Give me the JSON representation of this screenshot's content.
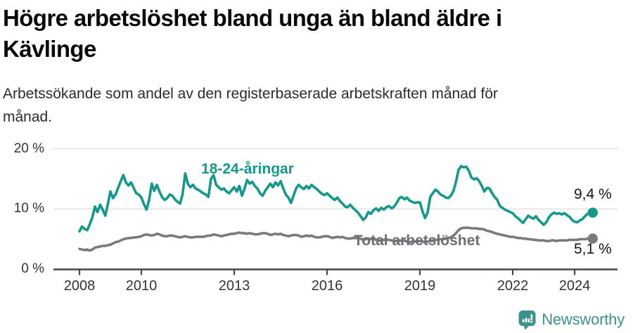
{
  "header": {
    "title_line1": "Högre arbetslöshet bland unga än bland äldre i",
    "title_line2": "Kävlinge",
    "subtitle_line1": "Arbetssökande som andel av den registerbaserade arbetskraften månad för",
    "subtitle_line2": "månad."
  },
  "chart_data": {
    "type": "line",
    "title": "Högre arbetslöshet bland unga än bland äldre i Kävlinge",
    "subtitle": "Arbetssökande som andel av den registerbaserade arbetskraften månad för månad.",
    "x_unit": "monthly",
    "x_start": "2008-01",
    "x_end": "2024-08",
    "ylim": [
      0,
      21.5
    ],
    "grid": "horizontal",
    "y_ticks": [
      0,
      10,
      20
    ],
    "y_tick_labels": [
      "0 %",
      "10 %",
      "20 %"
    ],
    "x_tick_years": [
      2008,
      2010,
      2013,
      2016,
      2019,
      2022,
      2024
    ],
    "x_tick_labels": [
      "2008",
      "2010",
      "2013",
      "2016",
      "2019",
      "2022",
      "2024"
    ],
    "series": [
      {
        "name": "Total arbetslöshet",
        "color": "#7a7a7e",
        "end_label": "5,1 %",
        "values": [
          3.4,
          3.3,
          3.2,
          3.3,
          3.1,
          3.3,
          3.6,
          3.7,
          3.8,
          3.9,
          3.9,
          4.0,
          4.1,
          4.3,
          4.5,
          4.6,
          4.8,
          5.0,
          5.1,
          5.2,
          5.2,
          5.3,
          5.3,
          5.4,
          5.5,
          5.7,
          5.8,
          5.7,
          5.6,
          5.7,
          5.9,
          5.8,
          5.6,
          5.5,
          5.5,
          5.6,
          5.6,
          5.5,
          5.4,
          5.3,
          5.4,
          5.5,
          5.4,
          5.3,
          5.3,
          5.4,
          5.4,
          5.4,
          5.4,
          5.5,
          5.6,
          5.6,
          5.8,
          5.7,
          5.6,
          5.5,
          5.6,
          5.7,
          5.8,
          5.9,
          5.9,
          6.0,
          6.1,
          6.0,
          6.0,
          5.9,
          6.0,
          5.9,
          5.8,
          5.8,
          5.9,
          6.0,
          6.0,
          5.9,
          5.7,
          5.8,
          5.9,
          5.8,
          5.9,
          5.7,
          5.6,
          5.5,
          5.6,
          5.7,
          5.7,
          5.6,
          5.4,
          5.5,
          5.6,
          5.5,
          5.6,
          5.4,
          5.3,
          5.3,
          5.4,
          5.5,
          5.5,
          5.4,
          5.2,
          5.3,
          5.4,
          5.3,
          5.4,
          5.2,
          5.1,
          5.1,
          5.2,
          5.2,
          5.2,
          5.1,
          4.9,
          5.0,
          5.1,
          5.0,
          5.1,
          4.9,
          4.8,
          4.8,
          4.9,
          4.9,
          4.9,
          4.8,
          4.7,
          4.7,
          4.8,
          4.7,
          4.8,
          4.6,
          4.5,
          4.6,
          4.6,
          4.7,
          4.7,
          4.6,
          4.5,
          4.6,
          4.7,
          4.8,
          4.9,
          4.9,
          5.0,
          5.0,
          5.1,
          5.2,
          5.3,
          5.6,
          6.0,
          6.5,
          6.8,
          6.9,
          6.9,
          6.9,
          6.8,
          6.8,
          6.8,
          6.7,
          6.7,
          6.6,
          6.4,
          6.3,
          6.2,
          6.0,
          5.9,
          5.8,
          5.7,
          5.6,
          5.5,
          5.4,
          5.4,
          5.3,
          5.2,
          5.2,
          5.1,
          5.1,
          5.0,
          5.0,
          4.9,
          4.9,
          4.8,
          4.8,
          4.8,
          4.7,
          4.7,
          4.8,
          4.8,
          4.7,
          4.8,
          4.8,
          4.8,
          4.8,
          4.9,
          4.9,
          4.9,
          4.9,
          5.0,
          5.0,
          5.0,
          5.1,
          5.0,
          5.1
        ]
      },
      {
        "name": "18-24-åringar",
        "color": "#12998a",
        "end_label": "9,4 %",
        "values": [
          6.3,
          7.1,
          6.7,
          6.5,
          7.5,
          8.6,
          10.4,
          9.5,
          10.7,
          9.9,
          8.9,
          10.8,
          12.9,
          11.8,
          12.4,
          13.5,
          14.6,
          15.6,
          14.4,
          13.9,
          14.4,
          13.5,
          12.6,
          12.4,
          11.9,
          10.8,
          9.9,
          11.5,
          14.2,
          13.0,
          14.0,
          12.9,
          12.0,
          11.5,
          11.8,
          12.4,
          12.2,
          11.6,
          11.2,
          10.9,
          12.5,
          15.9,
          14.2,
          13.6,
          14.0,
          13.4,
          13.2,
          12.9,
          12.6,
          12.4,
          12.0,
          15.0,
          15.6,
          14.0,
          13.6,
          13.2,
          13.4,
          12.9,
          12.6,
          13.1,
          13.6,
          12.9,
          13.8,
          12.2,
          13.4,
          14.8,
          14.2,
          14.5,
          13.8,
          13.4,
          12.6,
          12.2,
          13.0,
          13.6,
          14.2,
          13.6,
          14.4,
          13.9,
          14.6,
          13.4,
          12.4,
          11.9,
          11.0,
          12.2,
          13.4,
          14.0,
          13.6,
          13.3,
          13.8,
          13.4,
          14.0,
          13.6,
          13.3,
          12.9,
          12.5,
          12.3,
          12.6,
          12.2,
          11.8,
          11.5,
          11.9,
          11.3,
          10.9,
          10.4,
          10.3,
          10.7,
          10.2,
          9.8,
          9.4,
          8.8,
          8.2,
          8.6,
          9.5,
          9.2,
          9.8,
          10.1,
          9.7,
          10.2,
          9.9,
          10.3,
          10.5,
          10.1,
          10.4,
          11.0,
          11.8,
          12.0,
          11.6,
          11.9,
          11.4,
          11.2,
          11.0,
          11.1,
          11.1,
          9.6,
          8.5,
          9.4,
          12.0,
          12.6,
          13.2,
          12.9,
          12.4,
          12.2,
          11.9,
          11.8,
          12.2,
          13.0,
          14.5,
          16.5,
          17.1,
          16.9,
          17.0,
          16.3,
          15.2,
          14.9,
          15.1,
          14.6,
          13.8,
          12.9,
          13.5,
          13.4,
          12.6,
          12.0,
          11.5,
          10.5,
          10.2,
          9.9,
          9.7,
          9.5,
          9.3,
          8.8,
          8.5,
          8.1,
          7.7,
          8.3,
          8.9,
          8.6,
          8.4,
          8.8,
          8.2,
          7.8,
          7.4,
          7.8,
          8.6,
          9.1,
          9.4,
          9.2,
          9.3,
          9.1,
          9.3,
          9.0,
          8.7,
          8.2,
          7.9,
          7.8,
          8.1,
          8.3,
          8.8,
          9.2,
          9.3,
          9.4
        ]
      }
    ]
  },
  "colors": {
    "youth_line": "#12998a",
    "total_line": "#7a7a7e",
    "total_label": "#6e6e73",
    "grid": "#dcdcdc",
    "axis": "#454545",
    "tick_text": "#333333",
    "brand": "#3f918c"
  },
  "footer": {
    "brand": "Newsworthy",
    "logo_icon": "bar-chart-speech-bubble"
  }
}
